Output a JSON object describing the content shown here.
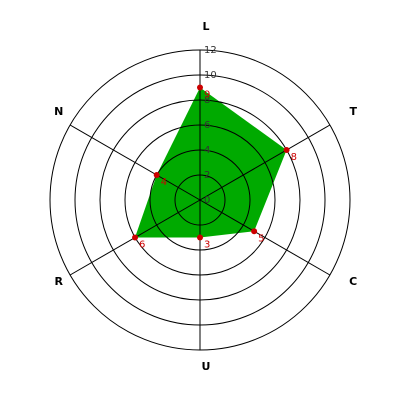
{
  "chart_data": {
    "type": "radar",
    "categories": [
      "L",
      "T",
      "C",
      "U",
      "R",
      "N"
    ],
    "values": [
      9,
      8,
      5,
      3,
      6,
      4
    ],
    "color": "#00aa00",
    "point_color": "#cc0000",
    "ylim": [
      0,
      12
    ],
    "yticks": [
      0,
      2,
      4,
      6,
      8,
      10,
      12
    ],
    "grid": true
  }
}
